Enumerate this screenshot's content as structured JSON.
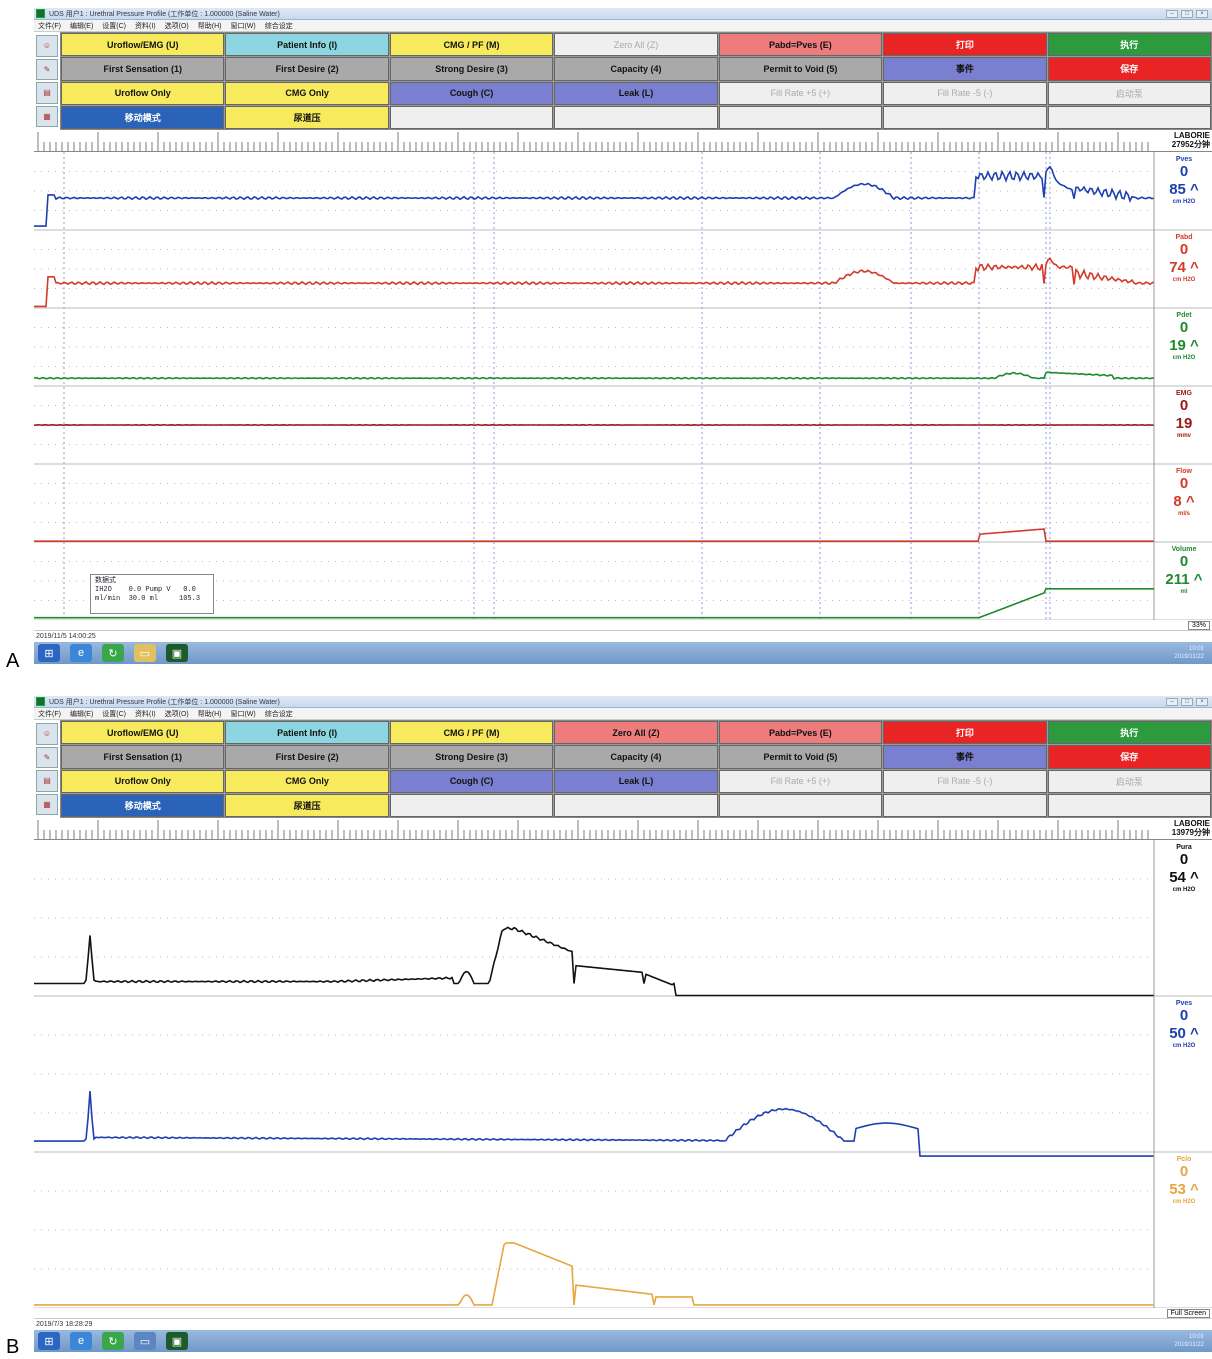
{
  "panelA": {
    "label": "A",
    "title": "UDS 用户1 : Urethral Pressure Profile (工作单位 : 1.000000 (Saline Water)",
    "menu": [
      "文件(F)",
      "编辑(E)",
      "设置(C)",
      "资料(I)",
      "选项(O)",
      "帮助(H)",
      "窗口(W)",
      "综合设定"
    ],
    "buttons": [
      {
        "label": "Uroflow/EMG (U)",
        "color": "yellow"
      },
      {
        "label": "Patient Info (I)",
        "color": "cyan"
      },
      {
        "label": "CMG / PF (M)",
        "color": "yellow"
      },
      {
        "label": "Zero All (Z)",
        "color": "disabled"
      },
      {
        "label": "Pabd=Pves (E)",
        "color": "pink"
      },
      {
        "label": "打印",
        "color": "red"
      },
      {
        "label": "执行",
        "color": "green"
      },
      {
        "label": "First Sensation (1)",
        "color": "grey"
      },
      {
        "label": "First Desire (2)",
        "color": "grey"
      },
      {
        "label": "Strong Desire (3)",
        "color": "grey"
      },
      {
        "label": "Capacity (4)",
        "color": "grey"
      },
      {
        "label": "Permit to Void (5)",
        "color": "grey"
      },
      {
        "label": "事件",
        "color": "purple"
      },
      {
        "label": "保存",
        "color": "red"
      },
      {
        "label": "Uroflow Only",
        "color": "yellow"
      },
      {
        "label": "CMG Only",
        "color": "yellow"
      },
      {
        "label": "Cough (C)",
        "color": "purple"
      },
      {
        "label": "Leak (L)",
        "color": "purple"
      },
      {
        "label": "Fill Rate +5 (+)",
        "color": "disabled"
      },
      {
        "label": "Fill Rate -5 (-)",
        "color": "disabled"
      },
      {
        "label": "启动泵",
        "color": "disabled"
      },
      {
        "label": "移动模式",
        "color": "blue"
      },
      {
        "label": "尿道压",
        "color": "yellow"
      },
      {
        "label": "",
        "color": "empty"
      },
      {
        "label": "",
        "color": "empty"
      },
      {
        "label": "",
        "color": "empty"
      },
      {
        "label": "",
        "color": "empty"
      },
      {
        "label": "",
        "color": "empty"
      }
    ],
    "laborie": "LABORIE",
    "duration": "27952分钟",
    "channels": [
      {
        "name": "Pves",
        "zero": "0",
        "value": "85 ^",
        "unit": "cm H2O",
        "color": "#1f3fb0"
      },
      {
        "name": "Pabd",
        "zero": "0",
        "value": "74 ^",
        "unit": "cm H2O",
        "color": "#d23a2a"
      },
      {
        "name": "Pdet",
        "zero": "0",
        "value": "19 ^",
        "unit": "cm H2O",
        "color": "#1e8a2e"
      },
      {
        "name": "EMG",
        "zero": "0",
        "value": "19",
        "unit": "mmv",
        "color": "#a01818"
      },
      {
        "name": "Flow",
        "zero": "0",
        "value": "8 ^",
        "unit": "ml/s",
        "color": "#d23a2a"
      },
      {
        "name": "Volume",
        "zero": "0",
        "value": "211 ^",
        "unit": "ml",
        "color": "#1e8a2e"
      }
    ],
    "infobox": {
      "title": "数据式",
      "row1": "IH2O    0.0 Pump V   0.0",
      "row2": "ml/min  30.0 ml     105.3"
    },
    "zoom": "33%",
    "timestamp": "2019/11/5 14:00:25",
    "tray_time": "10:01",
    "tray_date": "2019/11/22"
  },
  "panelB": {
    "label": "B",
    "title": "UDS 用户1 : Urethral Pressure Profile (工作单位 : 1.000000 (Saline Water)",
    "menu": [
      "文件(F)",
      "编辑(E)",
      "设置(C)",
      "资料(I)",
      "选项(O)",
      "帮助(H)",
      "窗口(W)",
      "综合设定"
    ],
    "buttons": [
      {
        "label": "Uroflow/EMG (U)",
        "color": "yellow"
      },
      {
        "label": "Patient Info (I)",
        "color": "cyan"
      },
      {
        "label": "CMG / PF (M)",
        "color": "yellow"
      },
      {
        "label": "Zero All (Z)",
        "color": "pink"
      },
      {
        "label": "Pabd=Pves (E)",
        "color": "pink"
      },
      {
        "label": "打印",
        "color": "red"
      },
      {
        "label": "执行",
        "color": "green"
      },
      {
        "label": "First Sensation (1)",
        "color": "grey"
      },
      {
        "label": "First Desire (2)",
        "color": "grey"
      },
      {
        "label": "Strong Desire (3)",
        "color": "grey"
      },
      {
        "label": "Capacity (4)",
        "color": "grey"
      },
      {
        "label": "Permit to Void (5)",
        "color": "grey"
      },
      {
        "label": "事件",
        "color": "purple"
      },
      {
        "label": "保存",
        "color": "red"
      },
      {
        "label": "Uroflow Only",
        "color": "yellow"
      },
      {
        "label": "CMG Only",
        "color": "yellow"
      },
      {
        "label": "Cough (C)",
        "color": "purple"
      },
      {
        "label": "Leak (L)",
        "color": "purple"
      },
      {
        "label": "Fill Rate +5 (+)",
        "color": "disabled"
      },
      {
        "label": "Fill Rate -5 (-)",
        "color": "disabled"
      },
      {
        "label": "启动泵",
        "color": "disabled"
      },
      {
        "label": "移动模式",
        "color": "blue"
      },
      {
        "label": "尿道压",
        "color": "yellow"
      },
      {
        "label": "",
        "color": "empty"
      },
      {
        "label": "",
        "color": "empty"
      },
      {
        "label": "",
        "color": "empty"
      },
      {
        "label": "",
        "color": "empty"
      },
      {
        "label": "",
        "color": "empty"
      }
    ],
    "laborie": "LABORIE",
    "duration": "13979分钟",
    "channels": [
      {
        "name": "Pura",
        "zero": "0",
        "value": "54 ^",
        "unit": "cm H2O",
        "color": "#111111"
      },
      {
        "name": "Pves",
        "zero": "0",
        "value": "50 ^",
        "unit": "cm H2O",
        "color": "#1f3fb0"
      },
      {
        "name": "Pclo",
        "zero": "0",
        "value": "53 ^",
        "unit": "cm H2O",
        "color": "#e6a640"
      }
    ],
    "zoom": "Full Screen",
    "timestamp": "2019/7/3 18:28:29",
    "tray_time": "10:01",
    "tray_date": "2019/11/22"
  }
}
